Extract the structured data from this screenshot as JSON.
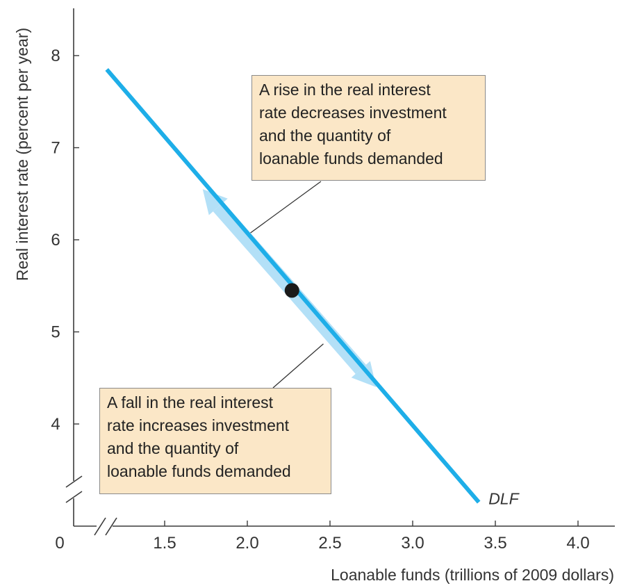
{
  "chart_data": {
    "type": "line",
    "xlabel": "Loanable funds (trillions of 2009 dollars)",
    "ylabel": "Real interest rate (percent per year)",
    "origin_label": "0",
    "x_ticks": [
      1.5,
      2.0,
      2.5,
      3.0,
      3.5,
      4.0
    ],
    "x_tick_labels": [
      "1.5",
      "2.0",
      "2.5",
      "3.0",
      "3.5",
      "4.0"
    ],
    "y_ticks": [
      4,
      5,
      6,
      7,
      8
    ],
    "y_tick_labels": [
      "4",
      "5",
      "6",
      "7",
      "8"
    ],
    "xlim": [
      1.1,
      4.2
    ],
    "ylim": [
      3.2,
      8.5
    ],
    "axis_breaks": [
      "x",
      "y"
    ],
    "series": [
      {
        "name": "DLF",
        "x": [
          1.15,
          3.4
        ],
        "y": [
          7.85,
          3.15
        ]
      }
    ],
    "point": {
      "x": 2.27,
      "y": 5.45
    },
    "movement_arrows": [
      {
        "from": {
          "x": 2.27,
          "y": 5.45
        },
        "to": {
          "x": 1.73,
          "y": 6.55
        }
      },
      {
        "from": {
          "x": 2.27,
          "y": 5.45
        },
        "to": {
          "x": 2.78,
          "y": 4.4
        }
      }
    ],
    "annotations": [
      {
        "id": "rise",
        "lines": [
          "A rise in the real interest",
          "rate decreases investment",
          "and the quantity of",
          "loanable funds demanded"
        ],
        "pointer_to": {
          "x": 2.0,
          "y": 6.05
        }
      },
      {
        "id": "fall",
        "lines": [
          "A fall in the real interest",
          "rate increases investment",
          "and the quantity of",
          "loanable funds demanded"
        ],
        "pointer_to": {
          "x": 2.46,
          "y": 4.87
        }
      }
    ],
    "grid": false,
    "colors": {
      "curve": "#1eaee8",
      "arrow": "#b3e0f7",
      "point": "#1a1a1a",
      "note_bg": "#fbe7c7"
    }
  }
}
